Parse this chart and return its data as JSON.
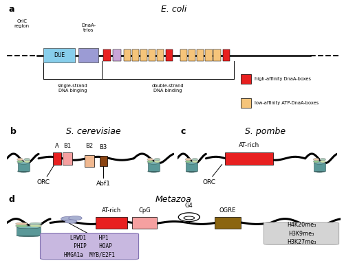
{
  "panel_a_title": "E. coli",
  "panel_b_title": "S. cerevisiae",
  "panel_c_title": "S. pombe",
  "panel_d_title": "Metazoa",
  "oriC_label": "OriC\nregion",
  "DUE_label": "DUE",
  "DnaA_label": "DnaA-\ntrios",
  "single_strand": "single-strand\nDNA binging",
  "double_strand": "double-strand\nDNA binding",
  "legend_high": "high-affinity DnaA-boxes",
  "legend_low": "low-affinity ATP-DnaA-boxes",
  "color_DUE": "#87CEEB",
  "color_DnaA": "#9B9BD4",
  "color_high": "#E82020",
  "color_low": "#F5C47A",
  "color_IHF": "#C9A5D8",
  "color_bg": "#ffffff",
  "sc_ORC": "ORC",
  "sc_Abf1": "Abf1",
  "sp_AT": "AT-rich",
  "sp_ORC": "ORC",
  "mz_AT": "AT-rich",
  "mz_CpG": "CpG",
  "mz_G4": "G4",
  "mz_OGRE": "OGRE",
  "mz_box1_line1": "LRWD1    HP1",
  "mz_box1_line2": "  PHIP    HOAP",
  "mz_box1_line3": "HMGA1a  MYB/E2F1",
  "mz_box2": "H4K20me₃\nH3K9me₃\nH3K27me₃",
  "color_AT_rich": "#E82020",
  "color_CpG": "#F5A0A0",
  "color_OGRE": "#8B6510",
  "color_B1": "#F5A0A0",
  "color_B2": "#F0B890",
  "color_B3": "#8B4513",
  "color_box1_bg": "#C8B8E0",
  "color_box2_bg": "#D4D4D4",
  "nuc_body": "#5A9898",
  "nuc_top": "#7AB8B8",
  "nuc_rim": "#406868",
  "nuc_h1": "#8EC88E",
  "nuc_h2": "#C8E0A8",
  "nuc_h3": "#E8C8A8",
  "nuc_h4": "#A8C8B8",
  "color_blob": "#A8B0D0"
}
